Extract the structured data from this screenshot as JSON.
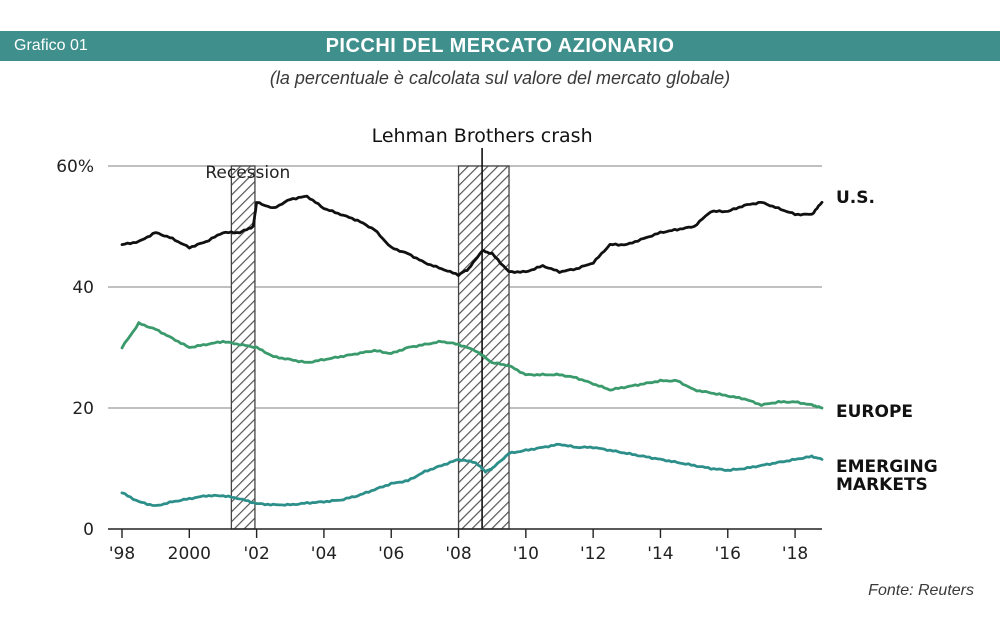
{
  "header": {
    "chart_number": "Grafico 01",
    "title": "PICCHI DEL MERCATO AZIONARIO",
    "subtitle": "(la percentuale è calcolata sul valore del mercato globale)"
  },
  "source": "Fonte: Reuters",
  "colors": {
    "banner": "#3f8f8c",
    "us": "#111111",
    "europe": "#3a9a6c",
    "emerging": "#2c8f8a",
    "grid": "#9a9a9a"
  },
  "chart_data": {
    "type": "line",
    "title": "PICCHI DEL MERCATO AZIONARIO",
    "subtitle": "(la percentuale è calcolata sul valore del mercato globale)",
    "xlabel": "",
    "ylabel": "",
    "xlim": [
      1998,
      2018.8
    ],
    "ylim": [
      0,
      60
    ],
    "grid": true,
    "x_ticks": [
      1998,
      2000,
      2002,
      2004,
      2006,
      2008,
      2010,
      2012,
      2014,
      2016,
      2018
    ],
    "x_tick_labels": [
      "'98",
      "2000",
      "'02",
      "'04",
      "'06",
      "'08",
      "'10",
      "'12",
      "'14",
      "'16",
      "'18"
    ],
    "y_ticks": [
      0,
      20,
      40,
      60
    ],
    "y_tick_labels": [
      "0",
      "20",
      "40",
      "60%"
    ],
    "shaded_periods": [
      {
        "label": "Recession",
        "start": 2001.25,
        "end": 2001.95
      },
      {
        "label": "",
        "start": 2008.0,
        "end": 2009.5
      }
    ],
    "events": [
      {
        "label": "Lehman Brothers crash",
        "x": 2008.7
      }
    ],
    "series": [
      {
        "name": "U.S.",
        "x": [
          1998.0,
          1998.5,
          1999.0,
          1999.5,
          2000.0,
          2000.5,
          2001.0,
          2001.5,
          2001.9,
          2002.0,
          2002.5,
          2003.0,
          2003.5,
          2004.0,
          2004.5,
          2005.0,
          2005.5,
          2006.0,
          2006.5,
          2007.0,
          2007.5,
          2008.0,
          2008.3,
          2008.7,
          2009.0,
          2009.5,
          2010.0,
          2010.5,
          2011.0,
          2011.5,
          2012.0,
          2012.5,
          2013.0,
          2013.5,
          2014.0,
          2014.5,
          2015.0,
          2015.5,
          2016.0,
          2016.5,
          2017.0,
          2017.5,
          2018.0,
          2018.5,
          2018.8
        ],
        "values": [
          47,
          47.5,
          49,
          48,
          46.5,
          47.5,
          49,
          49,
          50,
          54,
          53,
          54.5,
          55,
          53,
          52,
          51,
          49.5,
          46.5,
          45.5,
          44,
          43,
          42,
          43,
          46,
          45.5,
          42.5,
          42.5,
          43.5,
          42.5,
          43,
          44,
          47,
          47,
          48,
          49,
          49.5,
          50,
          52.5,
          52.5,
          53.5,
          54,
          53,
          52,
          52,
          54
        ]
      },
      {
        "name": "EUROPE",
        "x": [
          1998.0,
          1998.5,
          1999.0,
          1999.5,
          2000.0,
          2000.5,
          2001.0,
          2001.5,
          2002.0,
          2002.5,
          2003.0,
          2003.5,
          2004.0,
          2004.5,
          2005.0,
          2005.5,
          2006.0,
          2006.5,
          2007.0,
          2007.5,
          2008.0,
          2008.5,
          2009.0,
          2009.5,
          2010.0,
          2010.5,
          2011.0,
          2011.5,
          2012.0,
          2012.5,
          2013.0,
          2013.5,
          2014.0,
          2014.5,
          2015.0,
          2015.5,
          2016.0,
          2016.5,
          2017.0,
          2017.5,
          2018.0,
          2018.5,
          2018.8
        ],
        "values": [
          30,
          34,
          33,
          31.5,
          30,
          30.5,
          31,
          30.5,
          30,
          28.5,
          28,
          27.5,
          28,
          28.5,
          29,
          29.5,
          29,
          30,
          30.5,
          31,
          30.5,
          29.5,
          27.5,
          27,
          25.5,
          25.5,
          25.5,
          25,
          24,
          23,
          23.5,
          24,
          24.5,
          24.5,
          23,
          22.5,
          22,
          21.5,
          20.5,
          21,
          21,
          20.5,
          20
        ]
      },
      {
        "name": "EMERGING MARKETS",
        "x": [
          1998.0,
          1998.5,
          1999.0,
          1999.5,
          2000.0,
          2000.5,
          2001.0,
          2001.5,
          2002.0,
          2002.5,
          2003.0,
          2003.5,
          2004.0,
          2004.5,
          2005.0,
          2005.5,
          2006.0,
          2006.5,
          2007.0,
          2007.5,
          2008.0,
          2008.5,
          2008.8,
          2009.0,
          2009.5,
          2010.0,
          2010.5,
          2011.0,
          2011.5,
          2012.0,
          2012.5,
          2013.0,
          2013.5,
          2014.0,
          2014.5,
          2015.0,
          2015.5,
          2016.0,
          2016.5,
          2017.0,
          2017.5,
          2018.0,
          2018.5,
          2018.8
        ],
        "values": [
          6,
          4.5,
          3.8,
          4.5,
          5,
          5.5,
          5.5,
          5,
          4.2,
          4,
          4,
          4.3,
          4.5,
          4.8,
          5.5,
          6.5,
          7.5,
          8,
          9.5,
          10.5,
          11.5,
          11,
          9.5,
          10,
          12.5,
          13,
          13.5,
          14,
          13.5,
          13.5,
          13,
          12.5,
          12,
          11.5,
          11,
          10.5,
          10,
          9.7,
          10,
          10.5,
          11,
          11.5,
          12,
          11.5
        ]
      }
    ]
  }
}
